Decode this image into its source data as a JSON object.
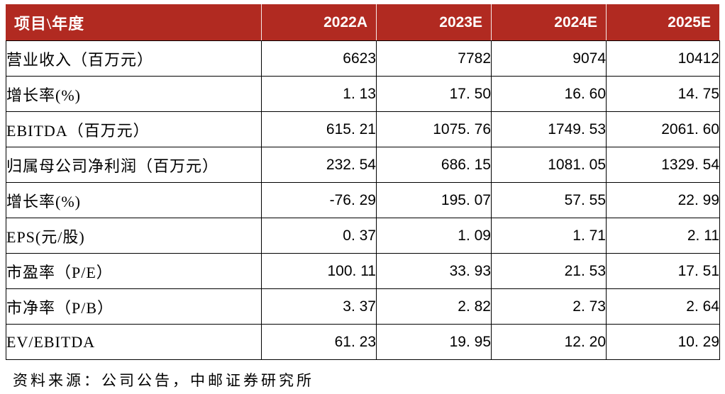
{
  "colors": {
    "header_bg": "#B12A21",
    "header_text": "#FFFFFF",
    "body_text": "#000000",
    "border": "#000000"
  },
  "table": {
    "header": {
      "label": "项目\\年度",
      "years": [
        "2022A",
        "2023E",
        "2024E",
        "2025E"
      ]
    },
    "rows": [
      {
        "label": "营业收入（百万元）",
        "values": [
          "6623",
          "7782",
          "9074",
          "10412"
        ]
      },
      {
        "label": "增长率(%)",
        "values": [
          "1. 13",
          "17. 50",
          "16. 60",
          "14. 75"
        ]
      },
      {
        "label": "EBITDA（百万元）",
        "values": [
          "615. 21",
          "1075. 76",
          "1749. 53",
          "2061. 60"
        ]
      },
      {
        "label": "归属母公司净利润（百万元）",
        "values": [
          "232. 54",
          "686. 15",
          "1081. 05",
          "1329. 54"
        ]
      },
      {
        "label": "增长率(%)",
        "values": [
          "-76. 29",
          "195. 07",
          "57. 55",
          "22. 99"
        ]
      },
      {
        "label": "EPS(元/股)",
        "values": [
          "0. 37",
          "1. 09",
          "1. 71",
          "2. 11"
        ]
      },
      {
        "label": "市盈率（P/E）",
        "values": [
          "100. 11",
          "33. 93",
          "21. 53",
          "17. 51"
        ]
      },
      {
        "label": "市净率（P/B）",
        "values": [
          "3. 37",
          "2. 82",
          "2. 73",
          "2. 64"
        ]
      },
      {
        "label": "EV/EBITDA",
        "values": [
          "61. 23",
          "19. 95",
          "12. 20",
          "10. 29"
        ]
      }
    ]
  },
  "footer": {
    "source": "资料来源：公司公告，中邮证券研究所"
  }
}
